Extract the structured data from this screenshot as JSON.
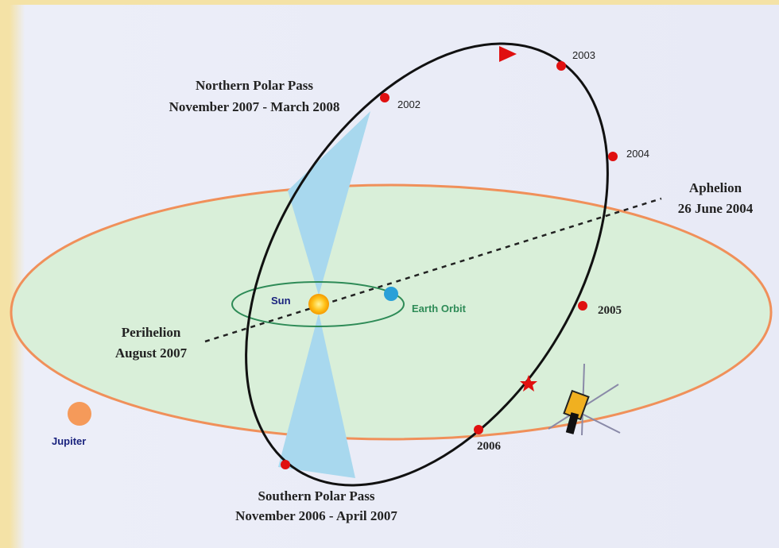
{
  "northern_pass": {
    "title": "Northern Polar Pass",
    "dates": "November 2007 - March 2008"
  },
  "southern_pass": {
    "title": "Southern Polar Pass",
    "dates": "November 2006 - April 2007"
  },
  "aphelion": {
    "title": "Aphelion",
    "date": "26 June 2004"
  },
  "perihelion": {
    "title": "Perihelion",
    "date": "August 2007"
  },
  "bodies": {
    "sun": "Sun",
    "earth_orbit": "Earth Orbit",
    "jupiter": "Jupiter"
  },
  "years": [
    "2002",
    "2003",
    "2004",
    "2005",
    "2006"
  ]
}
